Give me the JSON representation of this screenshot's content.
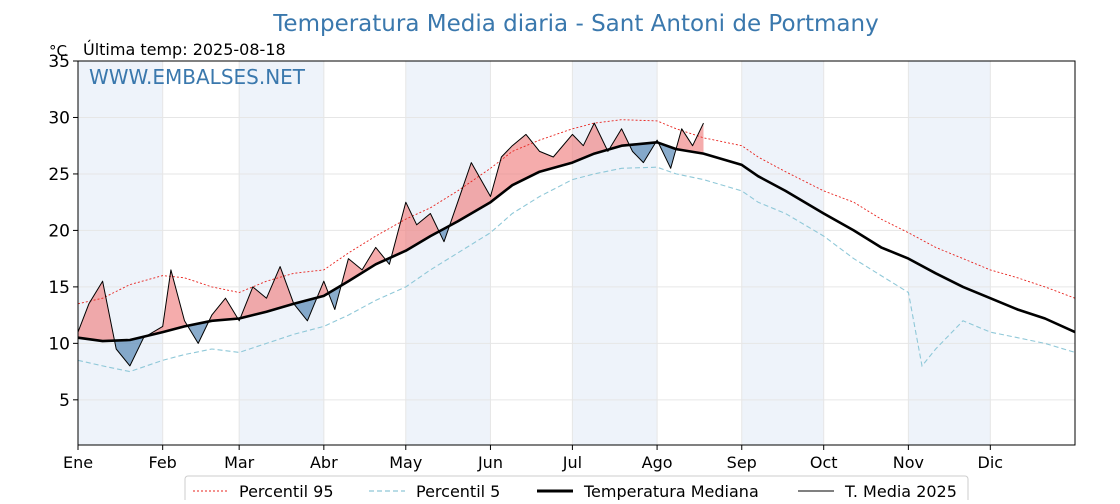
{
  "chart_data": {
    "type": "line",
    "title": "Temperatura Media diaria - Sant Antoni de Portmany",
    "unit_label": "°C",
    "last_temp": "Última temp: 2025-08-18",
    "watermark": "WWW.EMBALSES.NET",
    "ylim": [
      1,
      35
    ],
    "yticks": [
      5,
      10,
      15,
      20,
      25,
      30
    ],
    "xlim": [
      1,
      366
    ],
    "month_labels": [
      "Ene",
      "Feb",
      "Mar",
      "Abr",
      "May",
      "Jun",
      "Jul",
      "Ago",
      "Sep",
      "Oct",
      "Nov",
      "Dic"
    ],
    "month_start_days": [
      1,
      32,
      60,
      91,
      121,
      152,
      182,
      213,
      244,
      274,
      305,
      335
    ],
    "shaded_months": [
      "Ene",
      "Mar",
      "May",
      "Jul",
      "Sep",
      "Nov"
    ],
    "grid": true,
    "legend_placement": "bottom-center",
    "colors": {
      "title": "#3a78ad",
      "p95": "#e8231e",
      "p5": "#8fc8d8",
      "median": "#000000",
      "media2025": "#000000",
      "above_fill": "#f08080",
      "below_fill": "#4c80b0",
      "band": "#eef3fa"
    },
    "series": [
      {
        "name": "Percentil 95",
        "style": "dotted-red",
        "x": [
          1,
          10,
          20,
          32,
          40,
          50,
          60,
          70,
          80,
          91,
          100,
          110,
          121,
          130,
          140,
          152,
          160,
          170,
          182,
          190,
          200,
          213,
          220,
          230,
          244,
          250,
          260,
          274,
          285,
          295,
          305,
          315,
          325,
          335,
          345,
          355,
          366
        ],
        "values": [
          13.5,
          14.0,
          15.2,
          16.0,
          15.8,
          15.0,
          14.5,
          15.5,
          16.2,
          16.5,
          18.0,
          19.5,
          21.0,
          22.0,
          23.5,
          25.5,
          27.0,
          28.0,
          29.0,
          29.5,
          29.8,
          29.7,
          29.0,
          28.2,
          27.5,
          26.5,
          25.2,
          23.5,
          22.5,
          21.0,
          19.8,
          18.5,
          17.5,
          16.5,
          15.8,
          15.0,
          14.0
        ]
      },
      {
        "name": "Percentil 5",
        "style": "dashed-lightblue",
        "x": [
          1,
          10,
          20,
          32,
          40,
          50,
          60,
          70,
          80,
          91,
          100,
          110,
          121,
          130,
          140,
          152,
          160,
          170,
          182,
          190,
          200,
          213,
          220,
          230,
          244,
          250,
          260,
          274,
          285,
          295,
          305,
          310,
          315,
          325,
          335,
          345,
          355,
          366
        ],
        "values": [
          8.5,
          8.0,
          7.5,
          8.5,
          9.0,
          9.5,
          9.2,
          10.0,
          10.8,
          11.5,
          12.5,
          13.8,
          15.0,
          16.5,
          18.0,
          19.8,
          21.5,
          23.0,
          24.5,
          25.0,
          25.5,
          25.6,
          25.0,
          24.5,
          23.5,
          22.5,
          21.5,
          19.5,
          17.5,
          16.0,
          14.5,
          8.0,
          9.5,
          12.0,
          11.0,
          10.5,
          10.0,
          9.2
        ]
      },
      {
        "name": "Temperatura Mediana",
        "style": "thick-black",
        "x": [
          1,
          10,
          20,
          32,
          40,
          50,
          60,
          70,
          80,
          91,
          100,
          110,
          121,
          130,
          140,
          152,
          160,
          170,
          182,
          190,
          200,
          213,
          220,
          230,
          244,
          250,
          260,
          274,
          285,
          295,
          305,
          315,
          325,
          335,
          345,
          355,
          366
        ],
        "values": [
          10.5,
          10.2,
          10.3,
          11.0,
          11.5,
          12.0,
          12.2,
          12.8,
          13.5,
          14.2,
          15.5,
          17.0,
          18.2,
          19.5,
          20.8,
          22.5,
          24.0,
          25.2,
          26.0,
          26.8,
          27.5,
          27.8,
          27.2,
          26.8,
          25.8,
          24.8,
          23.5,
          21.5,
          20.0,
          18.5,
          17.5,
          16.2,
          15.0,
          14.0,
          13.0,
          12.2,
          11.0
        ]
      },
      {
        "name": "T. Media 2025",
        "style": "thin-black",
        "x": [
          1,
          5,
          10,
          15,
          20,
          25,
          32,
          35,
          40,
          45,
          50,
          55,
          60,
          65,
          70,
          75,
          80,
          85,
          91,
          95,
          100,
          105,
          110,
          115,
          121,
          125,
          130,
          135,
          140,
          145,
          152,
          156,
          160,
          165,
          170,
          175,
          182,
          186,
          190,
          195,
          200,
          204,
          208,
          213,
          218,
          222,
          226,
          230
        ],
        "values": [
          11.0,
          13.5,
          15.5,
          9.5,
          8.0,
          10.5,
          11.5,
          16.5,
          12.0,
          10.0,
          12.5,
          14.0,
          12.0,
          15.0,
          14.0,
          16.8,
          13.5,
          12.0,
          15.5,
          13.0,
          17.5,
          16.5,
          18.5,
          17.0,
          22.5,
          20.5,
          21.5,
          19.0,
          22.5,
          26.0,
          23.0,
          26.5,
          27.5,
          28.5,
          27.0,
          26.5,
          28.5,
          27.5,
          29.5,
          27.0,
          29.0,
          27.0,
          26.0,
          28.0,
          25.5,
          29.0,
          27.5,
          29.5
        ]
      }
    ]
  }
}
